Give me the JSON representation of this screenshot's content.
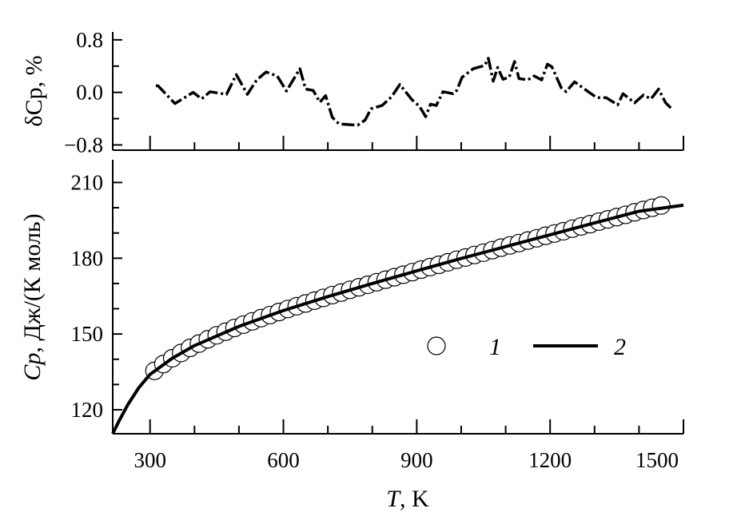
{
  "chart_data": [
    {
      "panel": "top",
      "type": "line",
      "ylabel": "δCp, %",
      "xlim": [
        216,
        1500
      ],
      "ylim": [
        -0.88,
        0.92
      ],
      "yticks": [
        0.8,
        0.0,
        -0.8
      ],
      "ytick_labels": [
        "0.8",
        "0.0",
        "−0.8"
      ],
      "yminor": [
        0.4,
        -0.4
      ],
      "line_style": "dash-dot",
      "series": [
        {
          "x": [
            313,
            318,
            356,
            397,
            416,
            435,
            472,
            494,
            519,
            540,
            561,
            586,
            607,
            637,
            650,
            667,
            682,
            695,
            710,
            725,
            767,
            784,
            797,
            822,
            843,
            862,
            889,
            906,
            920,
            931,
            944,
            959,
            982,
            990,
            1002,
            1027,
            1053,
            1061,
            1072,
            1082,
            1094,
            1108,
            1120,
            1130,
            1150,
            1164,
            1181,
            1194,
            1204,
            1225,
            1236,
            1255,
            1288,
            1305,
            1326,
            1352,
            1364,
            1390,
            1410,
            1427,
            1444,
            1460,
            1475
          ],
          "y": [
            0.1,
            0.1,
            -0.17,
            0.0,
            -0.1,
            0.01,
            -0.03,
            0.27,
            -0.03,
            0.19,
            0.31,
            0.25,
            0.02,
            0.36,
            0.05,
            0.03,
            -0.15,
            -0.05,
            -0.38,
            -0.48,
            -0.5,
            -0.42,
            -0.25,
            -0.2,
            -0.07,
            0.12,
            -0.11,
            -0.21,
            -0.37,
            -0.18,
            -0.2,
            0.01,
            -0.02,
            0.03,
            0.23,
            0.36,
            0.41,
            0.52,
            0.17,
            0.38,
            0.2,
            0.23,
            0.47,
            0.21,
            0.19,
            0.25,
            0.19,
            0.43,
            0.39,
            0.07,
            0.01,
            0.16,
            0.0,
            -0.08,
            -0.08,
            -0.19,
            -0.02,
            -0.16,
            -0.04,
            -0.1,
            0.05,
            -0.16,
            -0.26
          ]
        }
      ]
    },
    {
      "panel": "bottom",
      "type": "scatter+line",
      "xlabel_italic": "T",
      "xlabel_rest": ", K",
      "ylabel_italic": "Cp",
      "ylabel_rest": ", Дж/(К моль)",
      "xlim": [
        216,
        1500
      ],
      "ylim": [
        110.5,
        219
      ],
      "xticks": [
        300,
        600,
        900,
        1200,
        1500
      ],
      "xtick_labels": [
        "300",
        "600",
        "900",
        "1200",
        "1500"
      ],
      "xminor_step": 100,
      "yticks": [
        120,
        150,
        180,
        210
      ],
      "ytick_labels": [
        "120",
        "150",
        "180",
        "210"
      ],
      "yminor_step": 10,
      "legend": {
        "placement": "center-right",
        "entries": [
          {
            "label": "1",
            "marker": "circle"
          },
          {
            "label": "2",
            "marker": "line"
          }
        ]
      },
      "series": [
        {
          "label": "1",
          "marker": "open-circle",
          "x": [
            310,
            330,
            350,
            370,
            390,
            410,
            430,
            450,
            470,
            490,
            510,
            530,
            550,
            570,
            590,
            610,
            630,
            650,
            670,
            690,
            710,
            730,
            750,
            770,
            790,
            810,
            830,
            850,
            870,
            890,
            910,
            930,
            950,
            970,
            990,
            1010,
            1030,
            1050,
            1070,
            1090,
            1110,
            1130,
            1150,
            1170,
            1190,
            1210,
            1230,
            1250,
            1270,
            1290,
            1310,
            1330,
            1350,
            1370,
            1390,
            1410,
            1430,
            1450
          ],
          "y": [
            135.4,
            138.1,
            140.4,
            142.5,
            144.5,
            146.2,
            147.9,
            149.5,
            150.9,
            152.4,
            153.7,
            155.0,
            156.3,
            157.5,
            158.7,
            159.9,
            161.0,
            162.1,
            163.2,
            164.3,
            165.4,
            166.4,
            167.5,
            168.5,
            169.5,
            170.5,
            171.5,
            172.5,
            173.5,
            174.5,
            175.5,
            176.5,
            177.4,
            178.4,
            179.4,
            180.3,
            181.3,
            182.2,
            183.2,
            184.2,
            185.1,
            186.0,
            187.0,
            187.9,
            188.9,
            189.8,
            190.7,
            191.7,
            192.6,
            193.5,
            194.5,
            195.4,
            196.3,
            197.2,
            198.2,
            199.1,
            200.0,
            200.9
          ]
        },
        {
          "label": "2",
          "marker": "solid-line",
          "x": [
            216,
            230,
            250,
            275,
            300,
            350,
            400,
            500,
            600,
            700,
            800,
            900,
            1000,
            1100,
            1200,
            1300,
            1400,
            1500
          ],
          "y": [
            110.5,
            115.5,
            122.0,
            128.8,
            134.0,
            140.4,
            145.4,
            153.0,
            159.3,
            164.8,
            170.0,
            175.0,
            179.9,
            184.6,
            189.3,
            194.0,
            198.6,
            201.0
          ]
        }
      ]
    }
  ]
}
